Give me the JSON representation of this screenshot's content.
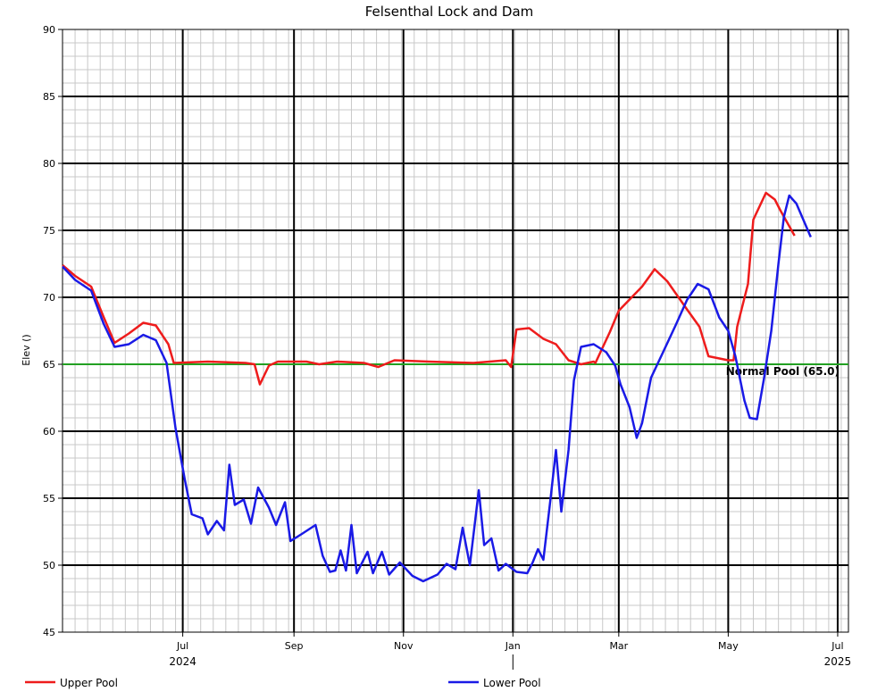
{
  "chart_data": {
    "type": "line",
    "title": "Felsenthal Lock and Dam",
    "ylabel": "Elev ()",
    "xlabel": "",
    "ylim": [
      45,
      90
    ],
    "xlim": [
      "2024-04-25",
      "2025-07-07"
    ],
    "grid": true,
    "legend_position": "bottom",
    "y_major_ticks": [
      45,
      50,
      55,
      60,
      65,
      70,
      75,
      80,
      85,
      90
    ],
    "x_ticks": [
      {
        "date": "2024-07-01",
        "label": "Jul"
      },
      {
        "date": "2024-09-01",
        "label": "Sep"
      },
      {
        "date": "2024-11-01",
        "label": "Nov"
      },
      {
        "date": "2025-01-01",
        "label": "Jan"
      },
      {
        "date": "2025-03-01",
        "label": "Mar"
      },
      {
        "date": "2025-05-01",
        "label": "May"
      },
      {
        "date": "2025-07-01",
        "label": "Jul"
      }
    ],
    "year_labels": [
      {
        "date": "2024-07-01",
        "label": "2024"
      },
      {
        "date": "2025-07-01",
        "label": "2025"
      }
    ],
    "reference_line": {
      "label": "Normal Pool (65.0)",
      "value": 65.0,
      "color": "#22a022"
    },
    "series": [
      {
        "name": "Upper Pool",
        "color": "#ee1c1c",
        "points": [
          [
            "2024-04-25",
            72.4
          ],
          [
            "2024-05-02",
            71.6
          ],
          [
            "2024-05-11",
            70.8
          ],
          [
            "2024-05-18",
            68.5
          ],
          [
            "2024-05-24",
            66.6
          ],
          [
            "2024-06-01",
            67.3
          ],
          [
            "2024-06-09",
            68.1
          ],
          [
            "2024-06-16",
            67.9
          ],
          [
            "2024-06-23",
            66.5
          ],
          [
            "2024-06-26",
            65.1
          ],
          [
            "2024-07-15",
            65.2
          ],
          [
            "2024-08-05",
            65.1
          ],
          [
            "2024-08-10",
            65.0
          ],
          [
            "2024-08-13",
            63.5
          ],
          [
            "2024-08-18",
            64.9
          ],
          [
            "2024-08-23",
            65.2
          ],
          [
            "2024-09-08",
            65.2
          ],
          [
            "2024-09-15",
            65.0
          ],
          [
            "2024-09-25",
            65.2
          ],
          [
            "2024-10-10",
            65.1
          ],
          [
            "2024-10-18",
            64.8
          ],
          [
            "2024-10-27",
            65.3
          ],
          [
            "2024-11-15",
            65.2
          ],
          [
            "2024-12-10",
            65.1
          ],
          [
            "2024-12-28",
            65.3
          ],
          [
            "2024-12-31",
            64.8
          ],
          [
            "2025-01-03",
            67.6
          ],
          [
            "2025-01-10",
            67.7
          ],
          [
            "2025-01-18",
            66.9
          ],
          [
            "2025-01-25",
            66.5
          ],
          [
            "2025-02-01",
            65.3
          ],
          [
            "2025-02-08",
            65.0
          ],
          [
            "2025-02-15",
            65.2
          ],
          [
            "2025-02-16",
            65.1
          ],
          [
            "2025-02-24",
            67.4
          ],
          [
            "2025-02-29",
            69.0
          ],
          [
            "2025-03-14",
            70.8
          ],
          [
            "2025-03-21",
            72.1
          ],
          [
            "2025-03-28",
            71.2
          ],
          [
            "2025-04-08",
            69.1
          ],
          [
            "2025-04-15",
            67.8
          ],
          [
            "2025-04-20",
            65.6
          ],
          [
            "2025-05-01",
            65.3
          ],
          [
            "2025-05-04",
            65.3
          ],
          [
            "2025-05-06",
            67.8
          ],
          [
            "2025-05-12",
            71.0
          ],
          [
            "2025-05-15",
            75.8
          ],
          [
            "2025-05-22",
            77.8
          ],
          [
            "2025-05-27",
            77.3
          ],
          [
            "2025-05-30",
            76.5
          ],
          [
            "2025-06-07",
            74.6
          ]
        ]
      },
      {
        "name": "Lower Pool",
        "color": "#1a1ae6",
        "points": [
          [
            "2024-04-25",
            72.3
          ],
          [
            "2024-05-02",
            71.3
          ],
          [
            "2024-05-11",
            70.5
          ],
          [
            "2024-05-18",
            68.0
          ],
          [
            "2024-05-24",
            66.3
          ],
          [
            "2024-06-01",
            66.5
          ],
          [
            "2024-06-09",
            67.2
          ],
          [
            "2024-06-16",
            66.8
          ],
          [
            "2024-06-22",
            65.1
          ],
          [
            "2024-06-27",
            60.2
          ],
          [
            "2024-07-02",
            56.5
          ],
          [
            "2024-07-06",
            53.8
          ],
          [
            "2024-07-12",
            53.5
          ],
          [
            "2024-07-15",
            52.3
          ],
          [
            "2024-07-20",
            53.3
          ],
          [
            "2024-07-24",
            52.6
          ],
          [
            "2024-07-27",
            57.5
          ],
          [
            "2024-07-30",
            54.5
          ],
          [
            "2024-08-04",
            54.9
          ],
          [
            "2024-08-08",
            53.1
          ],
          [
            "2024-08-12",
            55.8
          ],
          [
            "2024-08-18",
            54.3
          ],
          [
            "2024-08-22",
            53.0
          ],
          [
            "2024-08-27",
            54.7
          ],
          [
            "2024-08-30",
            51.8
          ],
          [
            "2024-09-05",
            52.3
          ],
          [
            "2024-09-13",
            53.0
          ],
          [
            "2024-09-17",
            50.7
          ],
          [
            "2024-09-21",
            49.5
          ],
          [
            "2024-09-24",
            49.6
          ],
          [
            "2024-09-27",
            51.1
          ],
          [
            "2024-09-30",
            49.6
          ],
          [
            "2024-10-03",
            53.0
          ],
          [
            "2024-10-06",
            49.4
          ],
          [
            "2024-10-12",
            51.0
          ],
          [
            "2024-10-15",
            49.4
          ],
          [
            "2024-10-20",
            51.0
          ],
          [
            "2024-10-24",
            49.3
          ],
          [
            "2024-10-30",
            50.2
          ],
          [
            "2024-11-06",
            49.2
          ],
          [
            "2024-11-12",
            48.8
          ],
          [
            "2024-11-20",
            49.3
          ],
          [
            "2024-11-25",
            50.1
          ],
          [
            "2024-11-30",
            49.7
          ],
          [
            "2024-12-04",
            52.8
          ],
          [
            "2024-12-08",
            50.0
          ],
          [
            "2024-12-13",
            55.6
          ],
          [
            "2024-12-16",
            51.5
          ],
          [
            "2024-12-20",
            52.0
          ],
          [
            "2024-12-24",
            49.6
          ],
          [
            "2024-12-28",
            50.1
          ],
          [
            "2025-01-03",
            49.5
          ],
          [
            "2025-01-09",
            49.4
          ],
          [
            "2025-01-12",
            50.2
          ],
          [
            "2025-01-15",
            51.2
          ],
          [
            "2025-01-18",
            50.4
          ],
          [
            "2025-01-22",
            55.0
          ],
          [
            "2025-01-25",
            58.6
          ],
          [
            "2025-01-28",
            54.0
          ],
          [
            "2025-02-01",
            58.6
          ],
          [
            "2025-02-04",
            63.8
          ],
          [
            "2025-02-08",
            66.3
          ],
          [
            "2025-02-15",
            66.5
          ],
          [
            "2025-02-22",
            65.9
          ],
          [
            "2025-02-27",
            64.9
          ],
          [
            "2025-03-02",
            63.5
          ],
          [
            "2025-03-07",
            61.8
          ],
          [
            "2025-03-11",
            59.5
          ],
          [
            "2025-03-14",
            60.6
          ],
          [
            "2025-03-19",
            64.0
          ],
          [
            "2025-03-26",
            66.0
          ],
          [
            "2025-04-02",
            68.0
          ],
          [
            "2025-04-08",
            69.8
          ],
          [
            "2025-04-14",
            71.0
          ],
          [
            "2025-04-20",
            70.6
          ],
          [
            "2025-04-26",
            68.5
          ],
          [
            "2025-05-01",
            67.5
          ],
          [
            "2025-05-05",
            65.6
          ],
          [
            "2025-05-10",
            62.3
          ],
          [
            "2025-05-13",
            61.0
          ],
          [
            "2025-05-17",
            60.9
          ],
          [
            "2025-05-21",
            64.0
          ],
          [
            "2025-05-25",
            67.5
          ],
          [
            "2025-05-29",
            72.5
          ],
          [
            "2025-06-01",
            76.0
          ],
          [
            "2025-06-04",
            77.6
          ],
          [
            "2025-06-08",
            77.0
          ],
          [
            "2025-06-16",
            74.5
          ]
        ]
      }
    ]
  }
}
